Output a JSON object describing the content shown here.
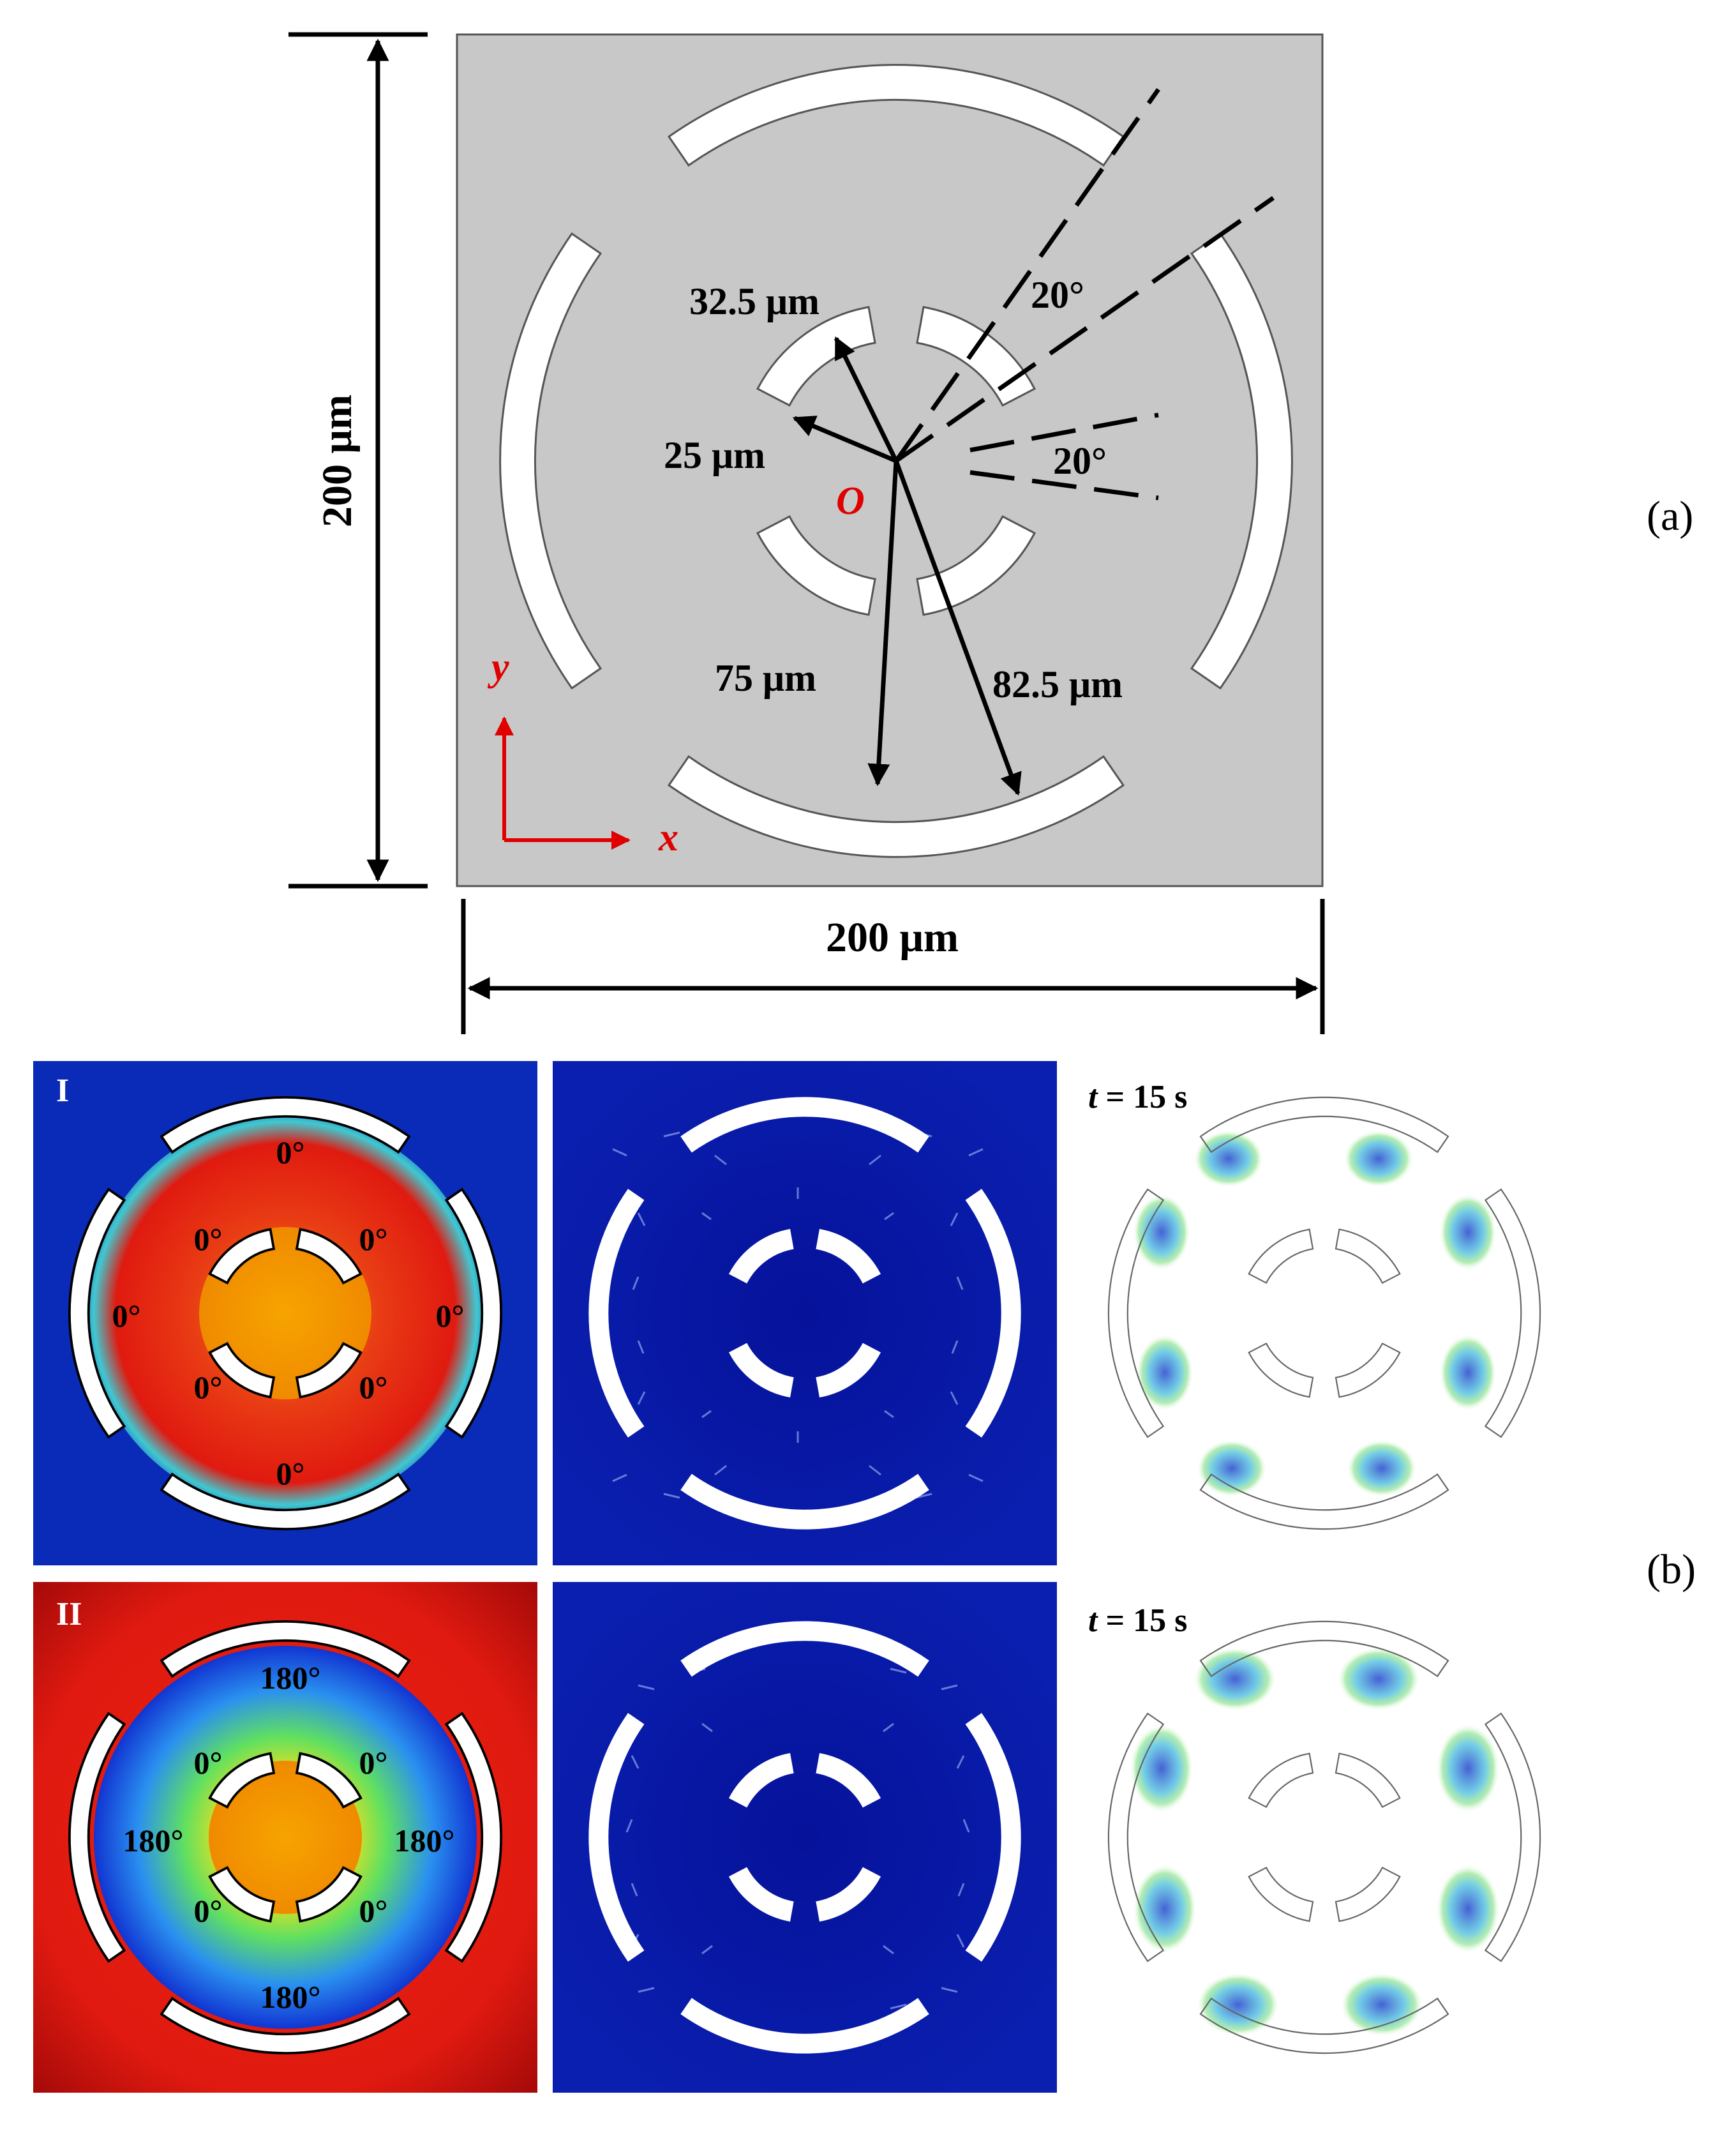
{
  "panel_a": {
    "height_label": "200 μm",
    "width_label": "200 μm",
    "r_inner_in": "25 μm",
    "r_inner_out": "32.5 μm",
    "r_outer_in": "75 μm",
    "r_outer_out": "82.5 μm",
    "angle_upper": "20°",
    "angle_right": "20°",
    "origin": "O",
    "axis_x": "x",
    "axis_y": "y",
    "tag": "(a)"
  },
  "panel_b": {
    "tag": "(b)",
    "row1": {
      "label": "I",
      "time": "t",
      "time_value": " = 15 s",
      "phase_outer_top": "0°",
      "phase_outer_bottom": "0°",
      "phase_outer_left": "0°",
      "phase_outer_right": "0°",
      "phase_inner_tl": "0°",
      "phase_inner_tr": "0°",
      "phase_inner_bl": "0°",
      "phase_inner_br": "0°"
    },
    "row2": {
      "label": "II",
      "time": "t",
      "time_value": " = 15 s",
      "phase_outer_top": "180°",
      "phase_outer_bottom": "180°",
      "phase_outer_left": "180°",
      "phase_outer_right": "180°",
      "phase_inner_tl": "0°",
      "phase_inner_tr": "0°",
      "phase_inner_bl": "0°",
      "phase_inner_br": "0°"
    }
  },
  "colors": {
    "substrate": "#c8c8c8",
    "annotation_red": "#e00000",
    "field_blue": "#0a1fb0",
    "field_red": "#e01a10",
    "field_orange": "#f5a000"
  }
}
